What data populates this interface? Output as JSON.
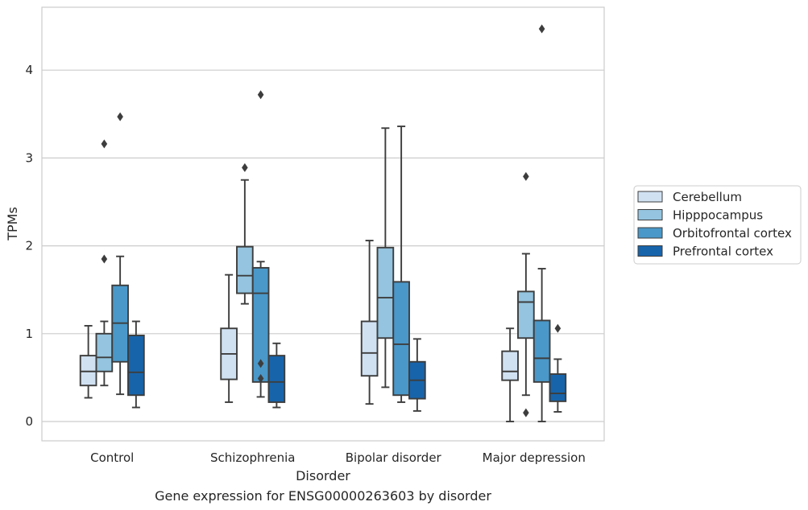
{
  "chart_data": {
    "type": "box",
    "title": "",
    "caption": "Gene expression for ENSG00000263603 by disorder",
    "xlabel": "Disorder",
    "ylabel": "TPMs",
    "ylim": [
      -0.22,
      4.72
    ],
    "yticks": [
      0,
      1,
      2,
      3,
      4
    ],
    "grid": true,
    "legend_position": "right",
    "categories": [
      "Control",
      "Schizophrenia",
      "Bipolar disorder",
      "Major depression"
    ],
    "series": [
      {
        "name": "Cerebellum",
        "color": "#d0e1f2",
        "boxes": [
          {
            "whislo": 0.27,
            "q1": 0.41,
            "med": 0.57,
            "q3": 0.75,
            "whishi": 1.09,
            "fliers": []
          },
          {
            "whislo": 0.22,
            "q1": 0.48,
            "med": 0.77,
            "q3": 1.06,
            "whishi": 1.67,
            "fliers": []
          },
          {
            "whislo": 0.2,
            "q1": 0.52,
            "med": 0.78,
            "q3": 1.14,
            "whishi": 2.06,
            "fliers": []
          },
          {
            "whislo": 0.0,
            "q1": 0.47,
            "med": 0.57,
            "q3": 0.8,
            "whishi": 1.06,
            "fliers": []
          }
        ]
      },
      {
        "name": "Hipppocampus",
        "color": "#94c4df",
        "boxes": [
          {
            "whislo": 0.41,
            "q1": 0.57,
            "med": 0.73,
            "q3": 1.0,
            "whishi": 1.14,
            "fliers": [
              3.16,
              1.85
            ]
          },
          {
            "whislo": 1.34,
            "q1": 1.46,
            "med": 1.66,
            "q3": 1.99,
            "whishi": 2.75,
            "fliers": [
              2.89
            ]
          },
          {
            "whislo": 0.39,
            "q1": 0.95,
            "med": 1.41,
            "q3": 1.98,
            "whishi": 3.34,
            "fliers": []
          },
          {
            "whislo": 0.3,
            "q1": 0.95,
            "med": 1.36,
            "q3": 1.48,
            "whishi": 1.91,
            "fliers": [
              2.79,
              0.1
            ]
          }
        ]
      },
      {
        "name": "Orbitofrontal cortex",
        "color": "#4a98c9",
        "boxes": [
          {
            "whislo": 0.31,
            "q1": 0.68,
            "med": 1.12,
            "q3": 1.55,
            "whishi": 1.88,
            "fliers": [
              3.47
            ]
          },
          {
            "whislo": 0.28,
            "q1": 0.45,
            "med": 1.46,
            "q3": 1.75,
            "whishi": 1.82,
            "fliers": [
              3.72,
              0.66,
              0.49
            ]
          },
          {
            "whislo": 0.22,
            "q1": 0.3,
            "med": 0.88,
            "q3": 1.59,
            "whishi": 3.36,
            "fliers": []
          },
          {
            "whislo": 0.0,
            "q1": 0.45,
            "med": 0.72,
            "q3": 1.15,
            "whishi": 1.74,
            "fliers": [
              4.47
            ]
          }
        ]
      },
      {
        "name": "Prefrontal cortex",
        "color": "#1764ab",
        "boxes": [
          {
            "whislo": 0.16,
            "q1": 0.3,
            "med": 0.56,
            "q3": 0.98,
            "whishi": 1.14,
            "fliers": []
          },
          {
            "whislo": 0.16,
            "q1": 0.22,
            "med": 0.45,
            "q3": 0.75,
            "whishi": 0.89,
            "fliers": []
          },
          {
            "whislo": 0.12,
            "q1": 0.26,
            "med": 0.47,
            "q3": 0.68,
            "whishi": 0.94,
            "fliers": []
          },
          {
            "whislo": 0.11,
            "q1": 0.23,
            "med": 0.32,
            "q3": 0.54,
            "whishi": 0.71,
            "fliers": [
              1.06
            ]
          }
        ]
      }
    ]
  }
}
